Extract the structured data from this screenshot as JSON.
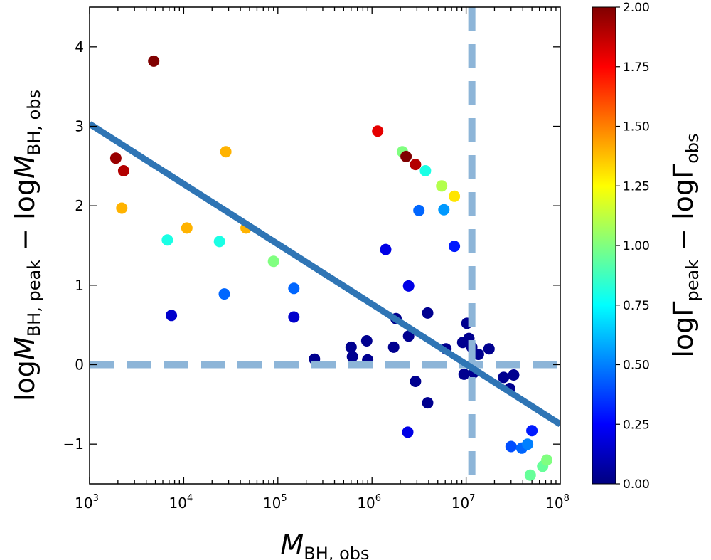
{
  "chart_data": {
    "type": "scatter",
    "title": "",
    "xlabel": {
      "main": "M",
      "sub": "BH, obs"
    },
    "ylabel": {
      "prefix": "log",
      "m1": "M",
      "s1": "BH, peak",
      "minus": " − log",
      "m2": "M",
      "s2": "BH, obs"
    },
    "colorbar_label": {
      "prefix": "log",
      "g1": "Γ",
      "s1": "peak",
      "minus": " − log",
      "g2": "Γ",
      "s2": "obs"
    },
    "x_scale": "log",
    "xlim": [
      1000,
      100000000
    ],
    "ylim": [
      -1.5,
      4.5
    ],
    "x_ticks": [
      {
        "value": 1000,
        "base": "10",
        "exp": "3"
      },
      {
        "value": 10000,
        "base": "10",
        "exp": "4"
      },
      {
        "value": 100000,
        "base": "10",
        "exp": "5"
      },
      {
        "value": 1000000,
        "base": "10",
        "exp": "6"
      },
      {
        "value": 10000000,
        "base": "10",
        "exp": "7"
      },
      {
        "value": 100000000,
        "base": "10",
        "exp": "8"
      }
    ],
    "y_ticks": [
      {
        "value": -1,
        "label": "−1"
      },
      {
        "value": 0,
        "label": "0"
      },
      {
        "value": 1,
        "label": "1"
      },
      {
        "value": 2,
        "label": "2"
      },
      {
        "value": 3,
        "label": "3"
      },
      {
        "value": 4,
        "label": "4"
      }
    ],
    "colorbar": {
      "range": [
        0,
        2
      ],
      "colormap": "jet",
      "ticks": [
        "0.00",
        "0.25",
        "0.50",
        "0.75",
        "1.00",
        "1.25",
        "1.50",
        "1.75",
        "2.00"
      ]
    },
    "fit_line": {
      "color": "#2f75b5",
      "points": [
        [
          1000,
          3.03
        ],
        [
          100000000,
          -0.75
        ]
      ]
    },
    "reference_lines": {
      "color": "#8db5d8",
      "style": "dashed",
      "y": 0,
      "x": 11500000
    },
    "points": [
      {
        "x": 1900,
        "y": 2.6,
        "c": 1.95
      },
      {
        "x": 2300,
        "y": 2.44,
        "c": 1.9
      },
      {
        "x": 2200,
        "y": 1.97,
        "c": 1.4
      },
      {
        "x": 4800,
        "y": 3.82,
        "c": 2.0
      },
      {
        "x": 6700,
        "y": 1.57,
        "c": 0.8
      },
      {
        "x": 7400,
        "y": 0.62,
        "c": 0.15
      },
      {
        "x": 10800,
        "y": 1.72,
        "c": 1.4
      },
      {
        "x": 24000,
        "y": 1.55,
        "c": 0.8
      },
      {
        "x": 28000,
        "y": 2.68,
        "c": 1.4
      },
      {
        "x": 27000,
        "y": 0.89,
        "c": 0.45
      },
      {
        "x": 46000,
        "y": 1.72,
        "c": 1.4
      },
      {
        "x": 90000,
        "y": 1.3,
        "c": 1.0
      },
      {
        "x": 148000,
        "y": 0.96,
        "c": 0.45
      },
      {
        "x": 148000,
        "y": 0.6,
        "c": 0.15
      },
      {
        "x": 245000,
        "y": 0.07,
        "c": 0.03
      },
      {
        "x": 600000,
        "y": 0.22,
        "c": 0.03
      },
      {
        "x": 620000,
        "y": 0.1,
        "c": 0.03
      },
      {
        "x": 880000,
        "y": 0.3,
        "c": 0.03
      },
      {
        "x": 900000,
        "y": 0.06,
        "c": 0.03
      },
      {
        "x": 1150000,
        "y": 2.94,
        "c": 1.8
      },
      {
        "x": 1400000,
        "y": 1.45,
        "c": 0.2
      },
      {
        "x": 1700000,
        "y": 0.22,
        "c": 0.03
      },
      {
        "x": 1800000,
        "y": 0.58,
        "c": 0.03
      },
      {
        "x": 2100000,
        "y": 2.68,
        "c": 1.0
      },
      {
        "x": 2300000,
        "y": 2.62,
        "c": 2.0
      },
      {
        "x": 2450000,
        "y": 0.99,
        "c": 0.2
      },
      {
        "x": 2450000,
        "y": 0.36,
        "c": 0.03
      },
      {
        "x": 2400000,
        "y": -0.85,
        "c": 0.2
      },
      {
        "x": 2900000,
        "y": 2.52,
        "c": 1.9
      },
      {
        "x": 2900000,
        "y": -0.21,
        "c": 0.03
      },
      {
        "x": 3150000,
        "y": 1.94,
        "c": 0.45
      },
      {
        "x": 3700000,
        "y": 2.44,
        "c": 0.8
      },
      {
        "x": 3900000,
        "y": 0.65,
        "c": 0.03
      },
      {
        "x": 3900000,
        "y": -0.48,
        "c": 0.03
      },
      {
        "x": 5500000,
        "y": 2.25,
        "c": 1.1
      },
      {
        "x": 5800000,
        "y": 1.95,
        "c": 0.55
      },
      {
        "x": 6100000,
        "y": 0.2,
        "c": 0.03
      },
      {
        "x": 7500000,
        "y": 2.12,
        "c": 1.3
      },
      {
        "x": 7500000,
        "y": 1.49,
        "c": 0.3
      },
      {
        "x": 9200000,
        "y": 0.28,
        "c": 0.03
      },
      {
        "x": 9500000,
        "y": -0.12,
        "c": 0.03
      },
      {
        "x": 10200000,
        "y": 0.52,
        "c": 0.03
      },
      {
        "x": 10700000,
        "y": 0.33,
        "c": 0.03
      },
      {
        "x": 11500000,
        "y": 0.22,
        "c": 0.03
      },
      {
        "x": 12000000,
        "y": -0.1,
        "c": 0.03
      },
      {
        "x": 13500000,
        "y": 0.13,
        "c": 0.03
      },
      {
        "x": 17500000,
        "y": 0.2,
        "c": 0.03
      },
      {
        "x": 25000000,
        "y": -0.16,
        "c": 0.03
      },
      {
        "x": 29000000,
        "y": -0.3,
        "c": 0.03
      },
      {
        "x": 30000000,
        "y": -1.03,
        "c": 0.4
      },
      {
        "x": 32000000,
        "y": -0.13,
        "c": 0.03
      },
      {
        "x": 39000000,
        "y": -1.05,
        "c": 0.45
      },
      {
        "x": 45000000,
        "y": -1.0,
        "c": 0.5
      },
      {
        "x": 50000000,
        "y": -0.83,
        "c": 0.3
      },
      {
        "x": 48000000,
        "y": -1.39,
        "c": 0.95
      },
      {
        "x": 65000000,
        "y": -1.28,
        "c": 0.95
      },
      {
        "x": 72000000,
        "y": -1.2,
        "c": 1.0
      }
    ]
  }
}
